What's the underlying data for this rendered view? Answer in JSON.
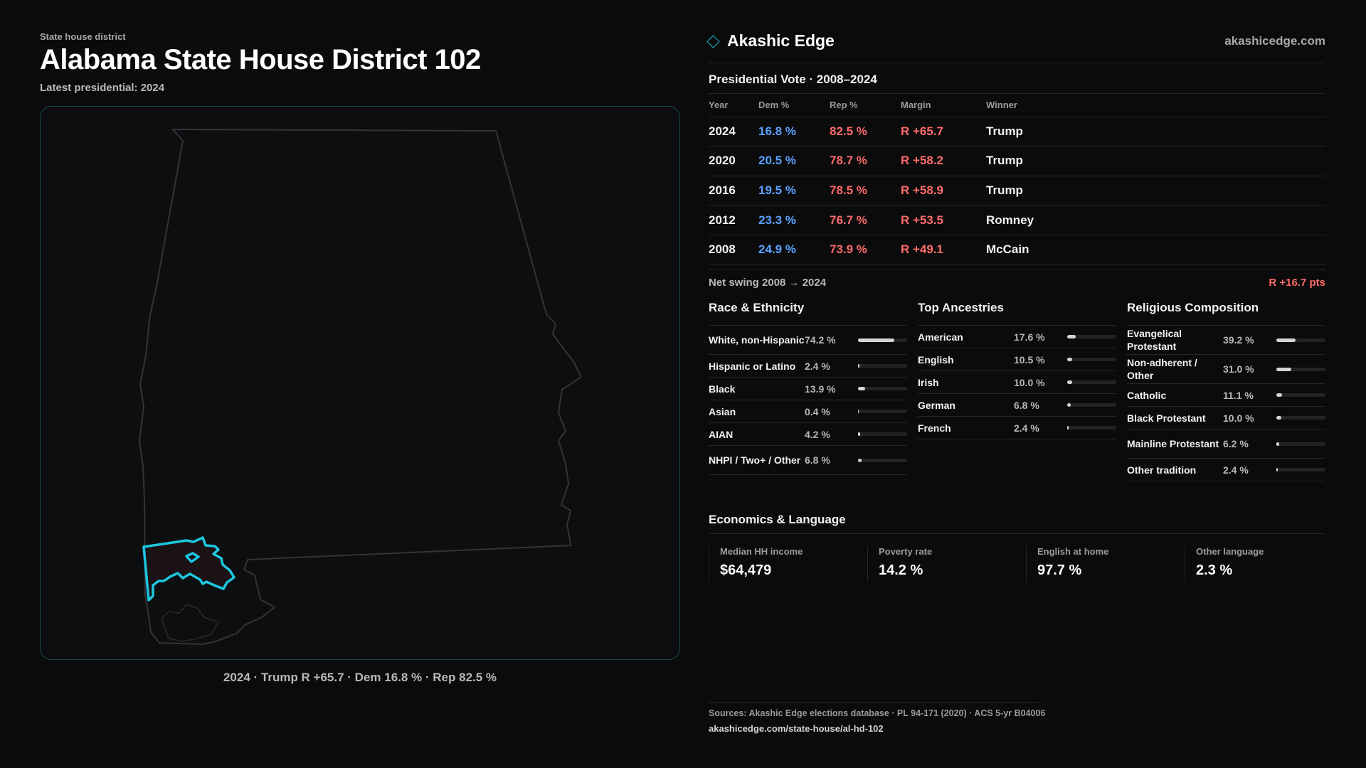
{
  "header": {
    "eyebrow": "State house district",
    "title": "Alabama State House District 102",
    "subtitle": "Latest presidential: 2024"
  },
  "map": {
    "state_name": "Alabama",
    "highlight_color": "#1cc8e0",
    "caption": "2024 · Trump R +65.7 · Dem 16.8 % · Rep 82.5 %"
  },
  "brand": {
    "name": "Akashic Edge",
    "site": "akashicedge.com",
    "icon": "diamond-icon"
  },
  "votes": {
    "title": "Presidential Vote · 2008–2024",
    "columns": [
      "Year",
      "Dem %",
      "Rep %",
      "Margin",
      "Winner"
    ],
    "rows": [
      {
        "year": "2024",
        "dem": "16.8 %",
        "rep": "82.5 %",
        "margin": "R +65.7",
        "winner": "Trump"
      },
      {
        "year": "2020",
        "dem": "20.5 %",
        "rep": "78.7 %",
        "margin": "R +58.2",
        "winner": "Trump"
      },
      {
        "year": "2016",
        "dem": "19.5 %",
        "rep": "78.5 %",
        "margin": "R +58.9",
        "winner": "Trump"
      },
      {
        "year": "2012",
        "dem": "23.3 %",
        "rep": "76.7 %",
        "margin": "R +53.5",
        "winner": "Romney"
      },
      {
        "year": "2008",
        "dem": "24.9 %",
        "rep": "73.9 %",
        "margin": "R +49.1",
        "winner": "McCain"
      }
    ],
    "swing_label": "Net swing 2008 → 2024",
    "swing_value": "R +16.7 pts"
  },
  "race": {
    "title": "Race & Ethnicity",
    "items": [
      {
        "label": "White, non-Hispanic",
        "pct": "74.2 %",
        "value": 74.2
      },
      {
        "label": "Hispanic or Latino",
        "pct": "2.4 %",
        "value": 2.4
      },
      {
        "label": "Black",
        "pct": "13.9 %",
        "value": 13.9
      },
      {
        "label": "Asian",
        "pct": "0.4 %",
        "value": 0.4
      },
      {
        "label": "AIAN",
        "pct": "4.2 %",
        "value": 4.2
      },
      {
        "label": "NHPI / Two+ / Other",
        "pct": "6.8 %",
        "value": 6.8
      }
    ]
  },
  "ancestry": {
    "title": "Top Ancestries",
    "items": [
      {
        "label": "American",
        "pct": "17.6 %",
        "value": 17.6
      },
      {
        "label": "English",
        "pct": "10.5 %",
        "value": 10.5
      },
      {
        "label": "Irish",
        "pct": "10.0 %",
        "value": 10.0
      },
      {
        "label": "German",
        "pct": "6.8 %",
        "value": 6.8
      },
      {
        "label": "French",
        "pct": "2.4 %",
        "value": 2.4
      }
    ]
  },
  "religion": {
    "title": "Religious Composition",
    "items": [
      {
        "label": "Evangelical Protestant",
        "pct": "39.2 %",
        "value": 39.2
      },
      {
        "label": "Non-adherent / Other",
        "pct": "31.0 %",
        "value": 31.0
      },
      {
        "label": "Catholic",
        "pct": "11.1 %",
        "value": 11.1
      },
      {
        "label": "Black Protestant",
        "pct": "10.0 %",
        "value": 10.0
      },
      {
        "label": "Mainline Protestant",
        "pct": "6.2 %",
        "value": 6.2
      },
      {
        "label": "Other tradition",
        "pct": "2.4 %",
        "value": 2.4
      }
    ]
  },
  "economics": {
    "title": "Economics & Language",
    "cards": [
      {
        "label": "Median HH income",
        "value": "$64,479"
      },
      {
        "label": "Poverty rate",
        "value": "14.2 %"
      },
      {
        "label": "English at home",
        "value": "97.7 %"
      },
      {
        "label": "Other language",
        "value": "2.3 %"
      }
    ]
  },
  "footer": {
    "sources": "Sources: Akashic Edge elections database · PL 94-171 (2020) · ACS 5-yr B04006",
    "url": "akashicedge.com/state-house/al-hd-102"
  }
}
